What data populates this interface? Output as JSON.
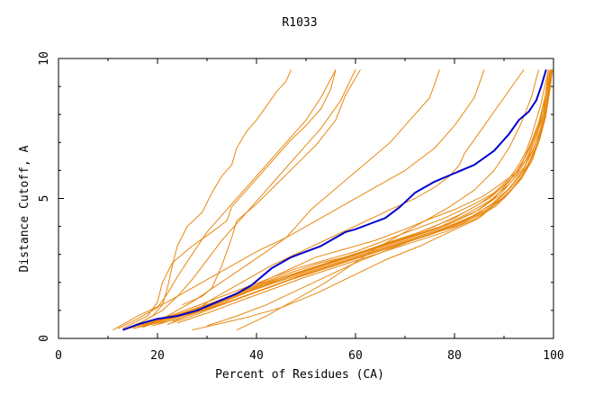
{
  "chart_data": {
    "type": "line",
    "title": "R1033",
    "xlabel": "Percent of Residues (CA)",
    "ylabel": "Distance Cutoff, A",
    "xlim": [
      0,
      100
    ],
    "ylim": [
      0,
      10
    ],
    "xticks": [
      "0",
      "20",
      "40",
      "60",
      "80",
      "100"
    ],
    "yticks": [
      "0",
      "5",
      "10"
    ],
    "grid": false,
    "colors": {
      "models": "#e8870e",
      "highlight": "#0000cc"
    },
    "series": [
      {
        "x": [
          14,
          17,
          22,
          28,
          32,
          36,
          41,
          47,
          52,
          58,
          64,
          70,
          74,
          80,
          86,
          90,
          93,
          95,
          96,
          97,
          98,
          98.5,
          99
        ],
        "y": [
          0.35,
          0.5,
          0.7,
          1.0,
          1.3,
          1.6,
          2.0,
          2.5,
          2.9,
          3.2,
          3.5,
          3.9,
          4.2,
          4.6,
          5.1,
          5.6,
          6.0,
          6.5,
          7.0,
          7.5,
          8.2,
          8.9,
          9.6
        ]
      },
      {
        "x": [
          15,
          19,
          24,
          30,
          36,
          42,
          48,
          54,
          60,
          66,
          72,
          78,
          84,
          88,
          91,
          93,
          94.5,
          95.5,
          96.5,
          97.5,
          98.2,
          99
        ],
        "y": [
          0.4,
          0.6,
          0.9,
          1.3,
          1.7,
          2.1,
          2.5,
          2.8,
          3.1,
          3.5,
          3.9,
          4.3,
          4.8,
          5.2,
          5.7,
          6.2,
          6.7,
          7.2,
          7.8,
          8.4,
          9.0,
          9.6
        ]
      },
      {
        "x": [
          16,
          20,
          26,
          33,
          40,
          46,
          53,
          60,
          66,
          73,
          80,
          85,
          89,
          92,
          94,
          95.5,
          97,
          98,
          98.8,
          99.4
        ],
        "y": [
          0.45,
          0.65,
          0.95,
          1.4,
          1.9,
          2.3,
          2.7,
          3.0,
          3.4,
          3.8,
          4.3,
          4.8,
          5.3,
          5.8,
          6.4,
          7.0,
          7.7,
          8.4,
          9.0,
          9.6
        ]
      },
      {
        "x": [
          17,
          22,
          28,
          35,
          42,
          49,
          56,
          63,
          70,
          76,
          82,
          87,
          91,
          93.5,
          95.5,
          97,
          98.2,
          99,
          99.5
        ],
        "y": [
          0.4,
          0.7,
          1.1,
          1.5,
          2.0,
          2.4,
          2.8,
          3.2,
          3.6,
          4.0,
          4.5,
          5.0,
          5.6,
          6.2,
          6.9,
          7.6,
          8.3,
          9.0,
          9.6
        ]
      },
      {
        "x": [
          18,
          23,
          30,
          37,
          44,
          51,
          58,
          65,
          72,
          79,
          85,
          89,
          92,
          94.5,
          96.5,
          98,
          99,
          99.6
        ],
        "y": [
          0.5,
          0.8,
          1.2,
          1.6,
          2.1,
          2.5,
          2.9,
          3.3,
          3.7,
          4.1,
          4.6,
          5.1,
          5.7,
          6.4,
          7.2,
          8.0,
          8.8,
          9.6
        ]
      },
      {
        "x": [
          15,
          20,
          27,
          34,
          41,
          48,
          55,
          62,
          69,
          76,
          82,
          87,
          91,
          94,
          96,
          97.8,
          98.8,
          99.3
        ],
        "y": [
          0.35,
          0.55,
          0.9,
          1.35,
          1.85,
          2.3,
          2.7,
          3.1,
          3.5,
          3.9,
          4.4,
          4.9,
          5.5,
          6.1,
          6.8,
          7.6,
          8.5,
          9.6
        ]
      },
      {
        "x": [
          19,
          25,
          32,
          39,
          46,
          53,
          60,
          67,
          74,
          81,
          86,
          90,
          93,
          95.5,
          97.2,
          98.4,
          99.2,
          99.8
        ],
        "y": [
          0.45,
          0.75,
          1.15,
          1.6,
          2.05,
          2.45,
          2.85,
          3.25,
          3.65,
          4.05,
          4.5,
          5.0,
          5.6,
          6.3,
          7.1,
          7.9,
          8.8,
          9.6
        ]
      },
      {
        "x": [
          16,
          21,
          28,
          35,
          43,
          50,
          57,
          64,
          71,
          78,
          84,
          88.5,
          92,
          94.8,
          96.8,
          98.2,
          99.1,
          99.7
        ],
        "y": [
          0.4,
          0.65,
          1.0,
          1.45,
          1.95,
          2.35,
          2.75,
          3.15,
          3.55,
          3.95,
          4.4,
          4.9,
          5.5,
          6.2,
          7.0,
          7.9,
          8.8,
          9.6
        ]
      },
      {
        "x": [
          22,
          27,
          33,
          40,
          47,
          54,
          61,
          68,
          75,
          81,
          86,
          90,
          93,
          95.2,
          97,
          98.3,
          99.1,
          99.6
        ],
        "y": [
          0.5,
          0.8,
          1.2,
          1.65,
          2.1,
          2.5,
          2.9,
          3.3,
          3.7,
          4.1,
          4.55,
          5.05,
          5.6,
          6.3,
          7.1,
          7.9,
          8.8,
          9.6
        ]
      },
      {
        "x": [
          24,
          30,
          36,
          43,
          50,
          57,
          64,
          71,
          78,
          84,
          88.5,
          91.5,
          94,
          96,
          97.5,
          98.6,
          99.3,
          99.8
        ],
        "y": [
          0.55,
          0.9,
          1.3,
          1.75,
          2.2,
          2.6,
          3.0,
          3.4,
          3.8,
          4.25,
          4.75,
          5.3,
          5.9,
          6.6,
          7.4,
          8.2,
          8.9,
          9.6
        ]
      },
      {
        "x": [
          27,
          32,
          38,
          45,
          52,
          59,
          66,
          73,
          79,
          85,
          89,
          92.5,
          95,
          96.8,
          98,
          99,
          99.6
        ],
        "y": [
          0.3,
          0.5,
          0.75,
          1.1,
          1.6,
          2.2,
          2.8,
          3.3,
          3.8,
          4.3,
          4.9,
          5.5,
          6.2,
          7.0,
          7.8,
          8.7,
          9.6
        ]
      },
      {
        "x": [
          20,
          24,
          30,
          36,
          43,
          50,
          57,
          64,
          71,
          78,
          84,
          88,
          91,
          93.5,
          95.5,
          97.2,
          98.4,
          99.3
        ],
        "y": [
          0.5,
          0.8,
          1.2,
          1.6,
          2.0,
          2.4,
          2.8,
          3.2,
          3.6,
          4.0,
          4.5,
          5.0,
          5.6,
          6.2,
          7.0,
          7.8,
          8.7,
          9.6
        ]
      },
      {
        "x": [
          23,
          28,
          35,
          42,
          49,
          56,
          63,
          70,
          77,
          83,
          87.5,
          91,
          93.8,
          95.8,
          97.4,
          98.6,
          99.4
        ],
        "y": [
          0.6,
          0.95,
          1.35,
          1.8,
          2.25,
          2.65,
          3.05,
          3.45,
          3.85,
          4.3,
          4.8,
          5.35,
          6.0,
          6.7,
          7.5,
          8.5,
          9.6
        ]
      },
      {
        "x": [
          30,
          36,
          42,
          48,
          54,
          60,
          67,
          73,
          80,
          86,
          90.5,
          93.5,
          95.8,
          97.4,
          98.6,
          99.5
        ],
        "y": [
          0.45,
          0.8,
          1.2,
          1.7,
          2.2,
          2.7,
          3.2,
          3.6,
          4.05,
          4.55,
          5.1,
          5.7,
          6.4,
          7.3,
          8.3,
          9.6
        ]
      },
      {
        "x": [
          13,
          17,
          21,
          24,
          27,
          30,
          33,
          37,
          41,
          45,
          49,
          53,
          57,
          60
        ],
        "y": [
          0.3,
          0.6,
          1.0,
          1.5,
          2.1,
          2.8,
          3.5,
          4.3,
          5.1,
          5.9,
          6.7,
          7.5,
          8.5,
          9.6
        ]
      },
      {
        "x": [
          12,
          16,
          20,
          22,
          24,
          27,
          30,
          34,
          38,
          42,
          46,
          50,
          53,
          56
        ],
        "y": [
          0.35,
          0.7,
          1.1,
          1.6,
          2.2,
          3.0,
          3.8,
          4.6,
          5.4,
          6.2,
          7.0,
          7.8,
          8.6,
          9.6
        ]
      },
      {
        "x": [
          15,
          19,
          21,
          22,
          23,
          24,
          26,
          29,
          31,
          33,
          35,
          36,
          38,
          40,
          42,
          44,
          46,
          47
        ],
        "y": [
          0.4,
          0.8,
          1.2,
          1.8,
          2.6,
          3.3,
          4.0,
          4.5,
          5.2,
          5.8,
          6.2,
          6.8,
          7.4,
          7.8,
          8.3,
          8.8,
          9.2,
          9.6
        ]
      },
      {
        "x": [
          13,
          18,
          20,
          21,
          23,
          27,
          31,
          34,
          35,
          38,
          41,
          44,
          47,
          50,
          53,
          55,
          56
        ],
        "y": [
          0.35,
          0.8,
          1.3,
          2.0,
          2.7,
          3.3,
          3.8,
          4.2,
          4.7,
          5.3,
          5.9,
          6.5,
          7.1,
          7.6,
          8.2,
          8.9,
          9.6
        ]
      },
      {
        "x": [
          25,
          29,
          31,
          32,
          33,
          34,
          35,
          36,
          40,
          44,
          48,
          52,
          56,
          58,
          61
        ],
        "y": [
          1.2,
          1.5,
          1.8,
          2.2,
          2.6,
          3.1,
          3.6,
          4.2,
          4.8,
          5.5,
          6.2,
          6.9,
          7.8,
          8.7,
          9.6
        ]
      },
      {
        "x": [
          17,
          22,
          27,
          32,
          37,
          42,
          46,
          48,
          51,
          55,
          59,
          63,
          67,
          70,
          72,
          75,
          77
        ],
        "y": [
          0.45,
          0.8,
          1.3,
          1.9,
          2.5,
          3.1,
          3.6,
          4.0,
          4.6,
          5.2,
          5.8,
          6.4,
          7.0,
          7.6,
          8.0,
          8.6,
          9.6
        ]
      },
      {
        "x": [
          11,
          16,
          22,
          28,
          34,
          40,
          46,
          52,
          58,
          64,
          70,
          76,
          80,
          84,
          86
        ],
        "y": [
          0.3,
          0.8,
          1.3,
          1.9,
          2.5,
          3.1,
          3.6,
          4.2,
          4.8,
          5.4,
          6.0,
          6.8,
          7.6,
          8.6,
          9.6
        ]
      },
      {
        "x": [
          26,
          31,
          37,
          43,
          49,
          55,
          61,
          67,
          72,
          76,
          79,
          81,
          82,
          84,
          86,
          88,
          90,
          92,
          94
        ],
        "y": [
          0.8,
          1.4,
          2.0,
          2.6,
          3.1,
          3.6,
          4.1,
          4.6,
          5.0,
          5.4,
          5.8,
          6.2,
          6.6,
          7.1,
          7.6,
          8.1,
          8.6,
          9.1,
          9.6
        ]
      },
      {
        "x": [
          36,
          42,
          48,
          54,
          59,
          64,
          69,
          74,
          79,
          84,
          88,
          91,
          93.5,
          95.5,
          97
        ],
        "y": [
          0.3,
          0.8,
          1.4,
          2.0,
          2.6,
          3.2,
          3.7,
          4.2,
          4.7,
          5.3,
          6.0,
          6.8,
          7.7,
          8.6,
          9.6
        ]
      }
    ],
    "highlight": {
      "x": [
        13,
        16,
        20,
        24,
        28,
        32,
        36,
        39,
        41,
        43,
        45,
        47,
        50,
        53,
        56,
        58,
        60,
        63,
        66,
        69,
        72,
        76,
        80,
        84,
        88,
        91,
        93,
        95,
        96.5,
        97.5,
        98.5
      ],
      "y": [
        0.3,
        0.5,
        0.7,
        0.8,
        1.0,
        1.3,
        1.6,
        1.9,
        2.2,
        2.5,
        2.7,
        2.9,
        3.1,
        3.3,
        3.6,
        3.8,
        3.9,
        4.1,
        4.3,
        4.7,
        5.2,
        5.6,
        5.9,
        6.2,
        6.7,
        7.3,
        7.8,
        8.1,
        8.5,
        9.0,
        9.6
      ]
    }
  }
}
